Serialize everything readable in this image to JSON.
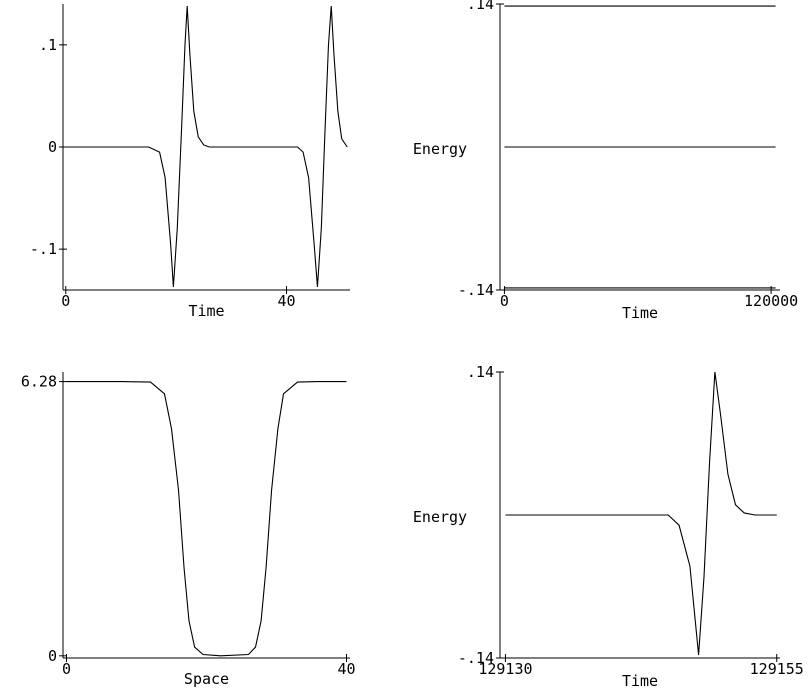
{
  "chart_data": [
    {
      "type": "line",
      "panel": "top-left",
      "title": "",
      "xlabel": "Time",
      "ylabel": "",
      "xlim": [
        -0.5,
        51.5
      ],
      "ylim": [
        -0.14,
        0.14
      ],
      "xticks": [
        {
          "value": 0,
          "label": "0"
        },
        {
          "value": 40,
          "label": "40"
        }
      ],
      "yticks": [
        {
          "value": 0.1,
          "label": ".1"
        },
        {
          "value": 0,
          "label": "0"
        },
        {
          "value": -0.1,
          "label": "-.1"
        }
      ],
      "series": [
        {
          "values": [
            [
              0,
              0
            ],
            [
              10,
              0
            ],
            [
              15,
              0
            ],
            [
              17,
              -0.005
            ],
            [
              18,
              -0.03
            ],
            [
              19,
              -0.095
            ],
            [
              19.5,
              -0.137
            ],
            [
              20.2,
              -0.08
            ],
            [
              21,
              0.02
            ],
            [
              21.6,
              0.1
            ],
            [
              22,
              0.138
            ],
            [
              22.5,
              0.09
            ],
            [
              23.2,
              0.035
            ],
            [
              24,
              0.01
            ],
            [
              25,
              0.002
            ],
            [
              26,
              0
            ],
            [
              28,
              0
            ],
            [
              35,
              0
            ],
            [
              42,
              0
            ],
            [
              43,
              -0.005
            ],
            [
              44,
              -0.03
            ],
            [
              45,
              -0.095
            ],
            [
              45.6,
              -0.137
            ],
            [
              46.3,
              -0.08
            ],
            [
              47,
              0.02
            ],
            [
              47.6,
              0.1
            ],
            [
              48.1,
              0.138
            ],
            [
              48.6,
              0.09
            ],
            [
              49.3,
              0.035
            ],
            [
              50,
              0.008
            ],
            [
              51,
              0
            ]
          ]
        }
      ]
    },
    {
      "type": "line",
      "panel": "top-right",
      "title": "",
      "xlabel": "Time",
      "ylabel": "Energy",
      "xlim": [
        -2000,
        124000
      ],
      "ylim": [
        -0.14,
        0.14
      ],
      "xticks": [
        {
          "value": 0,
          "label": "0"
        },
        {
          "value": 120000,
          "label": "120000"
        }
      ],
      "yticks": [
        {
          "value": 0.14,
          "label": ".14"
        },
        {
          "value": -0.14,
          "label": "-.14"
        }
      ],
      "series": [
        {
          "values": [
            [
              0,
              0.138
            ],
            [
              60000,
              0.138
            ],
            [
              122000,
              0.138
            ]
          ]
        },
        {
          "values": [
            [
              0,
              0
            ],
            [
              60000,
              0
            ],
            [
              122000,
              0
            ]
          ]
        },
        {
          "values": [
            [
              0,
              -0.138
            ],
            [
              60000,
              -0.138
            ],
            [
              122000,
              -0.138
            ]
          ]
        }
      ]
    },
    {
      "type": "line",
      "panel": "bottom-left",
      "title": "",
      "xlabel": "Space",
      "ylabel": "",
      "xlim": [
        -0.5,
        40.5
      ],
      "ylim": [
        -0.05,
        6.5
      ],
      "xticks": [
        {
          "value": 0,
          "label": "0"
        },
        {
          "value": 40,
          "label": "40"
        }
      ],
      "yticks": [
        {
          "value": 6.28,
          "label": "6.28"
        },
        {
          "value": 0,
          "label": "0"
        }
      ],
      "series": [
        {
          "values": [
            [
              0,
              6.28
            ],
            [
              8,
              6.28
            ],
            [
              12,
              6.27
            ],
            [
              14,
              6.0
            ],
            [
              15,
              5.2
            ],
            [
              16,
              3.8
            ],
            [
              16.8,
              2.0
            ],
            [
              17.5,
              0.8
            ],
            [
              18.3,
              0.2
            ],
            [
              19.5,
              0.03
            ],
            [
              22,
              0
            ],
            [
              26,
              0.03
            ],
            [
              27,
              0.2
            ],
            [
              27.8,
              0.8
            ],
            [
              28.5,
              2.0
            ],
            [
              29.3,
              3.8
            ],
            [
              30.2,
              5.2
            ],
            [
              31,
              6.0
            ],
            [
              33,
              6.27
            ],
            [
              36,
              6.28
            ],
            [
              40,
              6.28
            ]
          ]
        }
      ]
    },
    {
      "type": "line",
      "panel": "bottom-right",
      "title": "",
      "xlabel": "Time",
      "ylabel": "Energy",
      "xlim": [
        129129.5,
        129155.3
      ],
      "ylim": [
        -0.14,
        0.14
      ],
      "xticks": [
        {
          "value": 129130,
          "label": "129130"
        },
        {
          "value": 129155,
          "label": "129155"
        }
      ],
      "yticks": [
        {
          "value": 0.14,
          "label": ".14"
        },
        {
          "value": -0.14,
          "label": "-.14"
        }
      ],
      "series": [
        {
          "values": [
            [
              129130,
              0
            ],
            [
              129140,
              0
            ],
            [
              129145,
              0
            ],
            [
              129146,
              -0.01
            ],
            [
              129147,
              -0.05
            ],
            [
              129147.8,
              -0.137
            ],
            [
              129148.3,
              -0.06
            ],
            [
              129148.8,
              0.05
            ],
            [
              129149.3,
              0.14
            ],
            [
              129149.8,
              0.1
            ],
            [
              129150.5,
              0.04
            ],
            [
              129151.2,
              0.01
            ],
            [
              129152,
              0.002
            ],
            [
              129153,
              0
            ],
            [
              129155,
              0
            ]
          ]
        }
      ]
    }
  ]
}
